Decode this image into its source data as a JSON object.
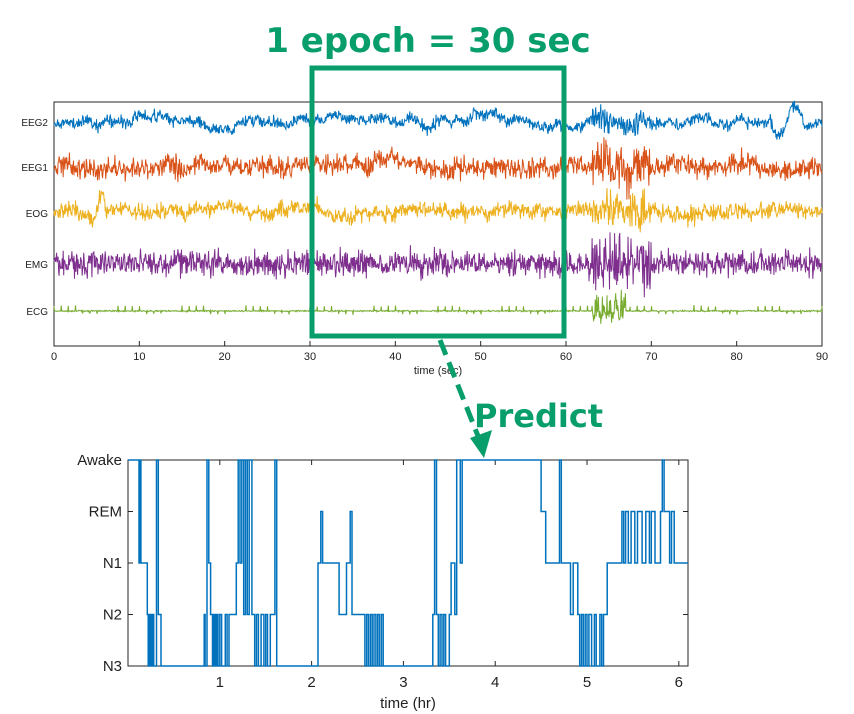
{
  "chart_data": [
    {
      "type": "line",
      "title": "1 epoch = 30 sec",
      "xlabel": "time (sec)",
      "xlim": [
        0,
        90
      ],
      "xticks": [
        0,
        10,
        20,
        30,
        40,
        50,
        60,
        70,
        80,
        90
      ],
      "series": [
        {
          "name": "EEG2",
          "color": "#0072BD"
        },
        {
          "name": "EEG1",
          "color": "#D95319"
        },
        {
          "name": "EOG",
          "color": "#EDB120"
        },
        {
          "name": "EMG",
          "color": "#7E2F8E"
        },
        {
          "name": "ECG",
          "color": "#77AC30"
        }
      ],
      "highlight_window": {
        "x": [
          30,
          60
        ],
        "color": "#089e6c"
      },
      "annotation": "Predict"
    },
    {
      "type": "line",
      "title": "",
      "xlabel": "time (hr)",
      "xlim": [
        0,
        6.1
      ],
      "xticks": [
        1,
        2,
        3,
        4,
        5,
        6
      ],
      "yticklabels": [
        "Awake",
        "REM",
        "N1",
        "N2",
        "N3"
      ],
      "ylevels": {
        "Awake": 4,
        "REM": 3,
        "N1": 2,
        "N2": 1,
        "N3": 0
      },
      "color": "#0072BD",
      "series": [
        {
          "steps": [
            [
              0,
              4
            ],
            [
              0.1,
              4
            ],
            [
              0.12,
              2
            ],
            [
              0.13,
              4
            ],
            [
              0.14,
              2
            ],
            [
              0.2,
              2
            ],
            [
              0.21,
              1
            ],
            [
              0.22,
              0
            ],
            [
              0.23,
              1
            ],
            [
              0.24,
              0
            ],
            [
              0.25,
              1
            ],
            [
              0.26,
              0
            ],
            [
              0.27,
              1
            ],
            [
              0.28,
              0
            ],
            [
              0.3,
              0
            ],
            [
              0.31,
              4
            ],
            [
              0.33,
              1
            ],
            [
              0.36,
              0
            ],
            [
              0.38,
              0
            ],
            [
              0.4,
              0
            ],
            [
              0.6,
              0
            ],
            [
              0.65,
              0
            ],
            [
              0.78,
              0
            ],
            [
              0.83,
              1
            ],
            [
              0.84,
              0
            ],
            [
              0.86,
              4
            ],
            [
              0.88,
              2
            ],
            [
              0.9,
              1
            ],
            [
              0.92,
              0
            ],
            [
              0.93,
              1
            ],
            [
              0.94,
              0
            ],
            [
              0.95,
              1
            ],
            [
              0.96,
              0
            ],
            [
              0.97,
              1
            ],
            [
              0.98,
              0
            ],
            [
              1.0,
              1
            ],
            [
              1.02,
              0
            ],
            [
              1.06,
              1
            ],
            [
              1.08,
              0
            ],
            [
              1.1,
              1
            ],
            [
              1.12,
              1
            ],
            [
              1.18,
              2
            ],
            [
              1.2,
              4
            ],
            [
              1.22,
              2
            ],
            [
              1.24,
              4
            ],
            [
              1.26,
              1
            ],
            [
              1.28,
              4
            ],
            [
              1.3,
              1
            ],
            [
              1.32,
              4
            ],
            [
              1.35,
              1
            ],
            [
              1.38,
              0
            ],
            [
              1.4,
              1
            ],
            [
              1.42,
              0
            ],
            [
              1.45,
              1
            ],
            [
              1.48,
              0
            ],
            [
              1.5,
              1
            ],
            [
              1.52,
              0
            ],
            [
              1.55,
              1
            ],
            [
              1.6,
              4
            ],
            [
              1.62,
              0
            ],
            [
              1.66,
              0
            ],
            [
              1.75,
              0
            ],
            [
              1.9,
              0
            ],
            [
              2.05,
              0
            ],
            [
              2.07,
              2
            ],
            [
              2.1,
              3
            ],
            [
              2.12,
              2
            ],
            [
              2.2,
              2
            ],
            [
              2.3,
              1
            ],
            [
              2.38,
              2
            ],
            [
              2.42,
              3
            ],
            [
              2.44,
              1
            ],
            [
              2.55,
              1
            ],
            [
              2.58,
              0
            ],
            [
              2.6,
              1
            ],
            [
              2.62,
              0
            ],
            [
              2.64,
              1
            ],
            [
              2.66,
              0
            ],
            [
              2.68,
              1
            ],
            [
              2.7,
              0
            ],
            [
              2.72,
              1
            ],
            [
              2.74,
              0
            ],
            [
              2.76,
              1
            ],
            [
              2.78,
              0
            ],
            [
              2.8,
              0
            ],
            [
              2.95,
              0
            ],
            [
              3.1,
              0
            ],
            [
              3.28,
              0
            ],
            [
              3.32,
              1
            ],
            [
              3.34,
              4
            ],
            [
              3.36,
              1
            ],
            [
              3.38,
              0
            ],
            [
              3.4,
              1
            ],
            [
              3.42,
              0
            ],
            [
              3.44,
              1
            ],
            [
              3.46,
              0
            ],
            [
              3.5,
              1
            ],
            [
              3.52,
              2
            ],
            [
              3.56,
              1
            ],
            [
              3.58,
              4
            ],
            [
              3.6,
              4
            ],
            [
              3.62,
              2
            ],
            [
              3.64,
              4
            ],
            [
              3.66,
              4
            ],
            [
              3.8,
              4
            ],
            [
              4.0,
              4
            ],
            [
              4.2,
              4
            ],
            [
              4.4,
              4
            ],
            [
              4.5,
              3
            ],
            [
              4.55,
              2
            ],
            [
              4.6,
              2
            ],
            [
              4.7,
              4
            ],
            [
              4.72,
              2
            ],
            [
              4.8,
              2
            ],
            [
              4.82,
              1
            ],
            [
              4.85,
              2
            ],
            [
              4.9,
              1
            ],
            [
              4.92,
              0
            ],
            [
              4.94,
              1
            ],
            [
              4.96,
              0
            ],
            [
              4.98,
              1
            ],
            [
              5.0,
              0
            ],
            [
              5.02,
              1
            ],
            [
              5.05,
              0
            ],
            [
              5.08,
              1
            ],
            [
              5.1,
              0
            ],
            [
              5.14,
              1
            ],
            [
              5.16,
              0
            ],
            [
              5.18,
              1
            ],
            [
              5.22,
              2
            ],
            [
              5.3,
              2
            ],
            [
              5.35,
              2
            ],
            [
              5.38,
              3
            ],
            [
              5.4,
              2
            ],
            [
              5.42,
              3
            ],
            [
              5.45,
              2
            ],
            [
              5.48,
              3
            ],
            [
              5.52,
              2
            ],
            [
              5.55,
              3
            ],
            [
              5.6,
              2
            ],
            [
              5.64,
              3
            ],
            [
              5.68,
              2
            ],
            [
              5.7,
              3
            ],
            [
              5.74,
              2
            ],
            [
              5.8,
              3
            ],
            [
              5.82,
              4
            ],
            [
              5.84,
              3
            ],
            [
              5.9,
              2
            ],
            [
              5.92,
              3
            ],
            [
              5.95,
              2
            ],
            [
              6.0,
              2
            ],
            [
              6.1,
              2
            ]
          ]
        }
      ]
    }
  ]
}
